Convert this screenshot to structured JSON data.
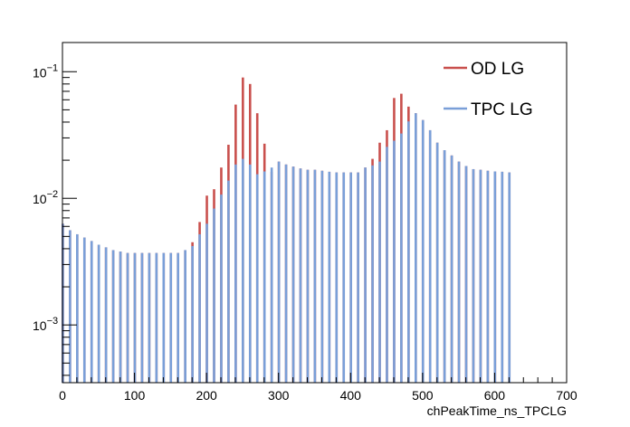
{
  "chart_data": {
    "type": "bar",
    "title": "",
    "xlabel": "chPeakTime_ns_TPCLG",
    "ylabel": "",
    "xlim": [
      0,
      700
    ],
    "ylim": [
      0.00035,
      0.17
    ],
    "yscale": "log",
    "bin_width": 10,
    "grid": false,
    "legend_position": "top-right",
    "x_ticks": [
      0,
      100,
      200,
      300,
      400,
      500,
      600,
      700
    ],
    "x_tick_labels": [
      "0",
      "100",
      "200",
      "300",
      "400",
      "500",
      "600",
      "700"
    ],
    "y_ticks": [
      0.001,
      0.01,
      0.1
    ],
    "y_tick_labels": [
      {
        "base": "10",
        "exp": "−3"
      },
      {
        "base": "10",
        "exp": "−2"
      },
      {
        "base": "10",
        "exp": "−1"
      }
    ],
    "x": [
      0,
      10,
      20,
      30,
      40,
      50,
      60,
      70,
      80,
      90,
      100,
      110,
      120,
      130,
      140,
      150,
      160,
      170,
      180,
      190,
      200,
      210,
      220,
      230,
      240,
      250,
      260,
      270,
      280,
      290,
      300,
      310,
      320,
      330,
      340,
      350,
      360,
      370,
      380,
      390,
      400,
      410,
      420,
      430,
      440,
      450,
      460,
      470,
      480,
      490,
      500,
      510,
      520,
      530,
      540,
      550,
      560,
      570,
      580,
      590,
      600,
      610,
      620
    ],
    "series": [
      {
        "name": "OD LG",
        "color": "#c9504d",
        "values": [
          0.0063,
          0.0056,
          0.0052,
          0.0049,
          0.0046,
          0.0043,
          0.0041,
          0.0039,
          0.0038,
          0.0037,
          0.0037,
          0.0037,
          0.0037,
          0.0037,
          0.0037,
          0.0037,
          0.0037,
          0.0039,
          0.0045,
          0.0065,
          0.0105,
          0.0118,
          0.0175,
          0.0265,
          0.055,
          0.09,
          0.08,
          0.047,
          0.027,
          0.0162,
          0.0195,
          0.0185,
          0.0178,
          0.0172,
          0.0168,
          0.0168,
          0.0165,
          0.0162,
          0.016,
          0.016,
          0.016,
          0.016,
          0.0175,
          0.0205,
          0.0275,
          0.0345,
          0.062,
          0.067,
          0.053,
          0.047,
          0.0415,
          0.0345,
          0.0275,
          0.024,
          0.0218,
          0.0195,
          0.018,
          0.017,
          0.0168,
          0.0165,
          0.0163,
          0.0162,
          0.016
        ]
      },
      {
        "name": "TPC LG",
        "color": "#7a9fd8",
        "values": [
          0.0063,
          0.0056,
          0.0052,
          0.0049,
          0.0046,
          0.0043,
          0.0041,
          0.0039,
          0.0038,
          0.0037,
          0.0037,
          0.0037,
          0.0037,
          0.0037,
          0.0037,
          0.0037,
          0.0037,
          0.0039,
          0.0042,
          0.0052,
          0.0063,
          0.0083,
          0.0107,
          0.0138,
          0.0185,
          0.0205,
          0.0185,
          0.0155,
          0.0163,
          0.0175,
          0.0195,
          0.0185,
          0.0178,
          0.0172,
          0.0168,
          0.0168,
          0.0165,
          0.0162,
          0.016,
          0.016,
          0.016,
          0.016,
          0.0175,
          0.0182,
          0.0195,
          0.0255,
          0.0285,
          0.0325,
          0.0405,
          0.047,
          0.0415,
          0.0345,
          0.0275,
          0.024,
          0.0218,
          0.0195,
          0.018,
          0.017,
          0.0168,
          0.0165,
          0.0163,
          0.0162,
          0.016
        ]
      }
    ]
  },
  "legend": {
    "items": [
      {
        "label": "OD LG",
        "color": "#c9504d"
      },
      {
        "label": "TPC LG",
        "color": "#7a9fd8"
      }
    ]
  }
}
